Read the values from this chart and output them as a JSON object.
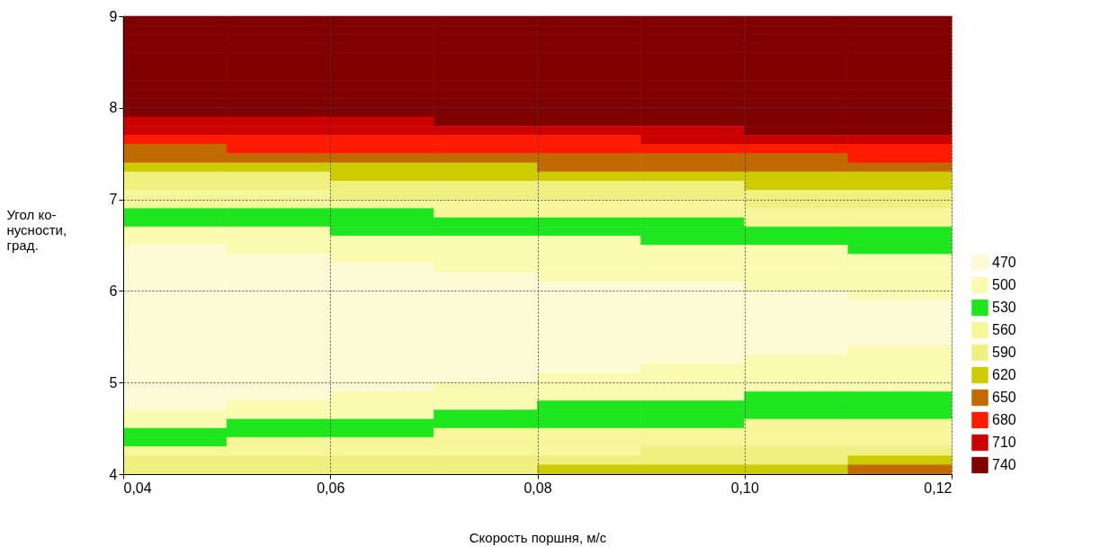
{
  "chart_data": {
    "type": "heatmap",
    "xlabel": "Скорость поршня, м/с",
    "ylabel": "Угол ко-\nнусности,\nград.",
    "x": [
      0.045,
      0.055,
      0.065,
      0.075,
      0.085,
      0.095,
      0.105,
      0.115
    ],
    "y": [
      8.95,
      8.85,
      8.75,
      8.65,
      8.55,
      8.45,
      8.35,
      8.25,
      8.15,
      8.05,
      7.95,
      7.85,
      7.75,
      7.65,
      7.55,
      7.45,
      7.35,
      7.25,
      7.15,
      7.05,
      6.95,
      6.85,
      6.75,
      6.65,
      6.55,
      6.45,
      6.35,
      6.25,
      6.15,
      6.05,
      5.95,
      5.85,
      5.75,
      5.65,
      5.55,
      5.45,
      5.35,
      5.25,
      5.15,
      5.05,
      4.95,
      4.85,
      4.75,
      4.65,
      4.55,
      4.45,
      4.35,
      4.25,
      4.15,
      4.05
    ],
    "cells": [
      [
        740,
        740,
        740,
        740,
        740,
        740,
        740,
        740
      ],
      [
        740,
        740,
        740,
        740,
        740,
        740,
        740,
        740
      ],
      [
        740,
        740,
        740,
        740,
        740,
        740,
        740,
        740
      ],
      [
        740,
        740,
        740,
        740,
        740,
        740,
        740,
        740
      ],
      [
        740,
        740,
        740,
        740,
        740,
        740,
        740,
        740
      ],
      [
        740,
        740,
        740,
        740,
        740,
        740,
        740,
        740
      ],
      [
        740,
        740,
        740,
        740,
        740,
        740,
        740,
        740
      ],
      [
        740,
        740,
        740,
        740,
        740,
        740,
        740,
        740
      ],
      [
        740,
        740,
        740,
        740,
        740,
        740,
        740,
        740
      ],
      [
        740,
        740,
        740,
        740,
        740,
        740,
        740,
        740
      ],
      [
        740,
        740,
        740,
        740,
        740,
        740,
        740,
        740
      ],
      [
        710,
        710,
        710,
        740,
        740,
        740,
        740,
        740
      ],
      [
        710,
        710,
        710,
        710,
        710,
        710,
        740,
        740
      ],
      [
        680,
        680,
        680,
        680,
        680,
        710,
        710,
        710
      ],
      [
        650,
        680,
        680,
        680,
        680,
        680,
        680,
        680
      ],
      [
        650,
        650,
        650,
        650,
        650,
        650,
        650,
        680
      ],
      [
        620,
        620,
        620,
        620,
        650,
        650,
        650,
        650
      ],
      [
        590,
        590,
        620,
        620,
        620,
        620,
        620,
        620
      ],
      [
        590,
        590,
        590,
        590,
        590,
        590,
        620,
        620
      ],
      [
        560,
        560,
        590,
        590,
        590,
        590,
        590,
        590
      ],
      [
        560,
        560,
        560,
        560,
        560,
        560,
        590,
        590
      ],
      [
        530,
        530,
        530,
        560,
        560,
        560,
        560,
        560
      ],
      [
        530,
        530,
        530,
        530,
        530,
        530,
        560,
        560
      ],
      [
        500,
        500,
        530,
        530,
        530,
        530,
        530,
        530
      ],
      [
        500,
        500,
        500,
        500,
        500,
        530,
        530,
        530
      ],
      [
        470,
        500,
        500,
        500,
        500,
        500,
        500,
        530
      ],
      [
        470,
        470,
        500,
        500,
        500,
        500,
        500,
        500
      ],
      [
        470,
        470,
        470,
        500,
        500,
        500,
        500,
        500
      ],
      [
        470,
        470,
        470,
        470,
        500,
        500,
        500,
        500
      ],
      [
        470,
        470,
        470,
        470,
        470,
        470,
        500,
        500
      ],
      [
        470,
        470,
        470,
        470,
        470,
        470,
        470,
        500
      ],
      [
        470,
        470,
        470,
        470,
        470,
        470,
        470,
        470
      ],
      [
        470,
        470,
        470,
        470,
        470,
        470,
        470,
        470
      ],
      [
        470,
        470,
        470,
        470,
        470,
        470,
        470,
        470
      ],
      [
        470,
        470,
        470,
        470,
        470,
        470,
        470,
        470
      ],
      [
        470,
        470,
        470,
        470,
        470,
        470,
        470,
        470
      ],
      [
        470,
        470,
        470,
        470,
        470,
        470,
        470,
        500
      ],
      [
        470,
        470,
        470,
        470,
        470,
        470,
        500,
        500
      ],
      [
        470,
        470,
        470,
        470,
        470,
        500,
        500,
        500
      ],
      [
        470,
        470,
        470,
        470,
        500,
        500,
        500,
        500
      ],
      [
        470,
        470,
        470,
        500,
        500,
        500,
        500,
        500
      ],
      [
        470,
        470,
        500,
        500,
        500,
        500,
        530,
        530
      ],
      [
        470,
        500,
        500,
        500,
        530,
        530,
        530,
        530
      ],
      [
        500,
        500,
        500,
        530,
        530,
        530,
        530,
        530
      ],
      [
        500,
        530,
        530,
        530,
        530,
        530,
        560,
        560
      ],
      [
        530,
        530,
        530,
        560,
        560,
        560,
        560,
        560
      ],
      [
        530,
        560,
        560,
        560,
        560,
        560,
        560,
        560
      ],
      [
        560,
        560,
        560,
        560,
        560,
        590,
        590,
        590
      ],
      [
        590,
        590,
        590,
        590,
        590,
        590,
        590,
        620
      ],
      [
        590,
        590,
        590,
        590,
        620,
        620,
        620,
        650
      ]
    ],
    "cticks": [
      470,
      500,
      530,
      560,
      590,
      620,
      650,
      680,
      710,
      740
    ],
    "colors": [
      "#fdfbd6",
      "#fafab0",
      "#1ee61e",
      "#f6f69a",
      "#f0f080",
      "#cccc00",
      "#c06a00",
      "#ff1a00",
      "#cc0000",
      "#800000"
    ],
    "xlim": [
      0.04,
      0.12
    ],
    "xticks": [
      {
        "value": 0.04,
        "label": "0,04"
      },
      {
        "value": 0.06,
        "label": "0,06"
      },
      {
        "value": 0.08,
        "label": "0,08"
      },
      {
        "value": 0.1,
        "label": "0,10"
      },
      {
        "value": 0.12,
        "label": "0,12"
      }
    ],
    "ylim": [
      4,
      9
    ],
    "yticks": [
      4,
      5,
      6,
      7,
      8,
      9
    ],
    "grid": true
  }
}
